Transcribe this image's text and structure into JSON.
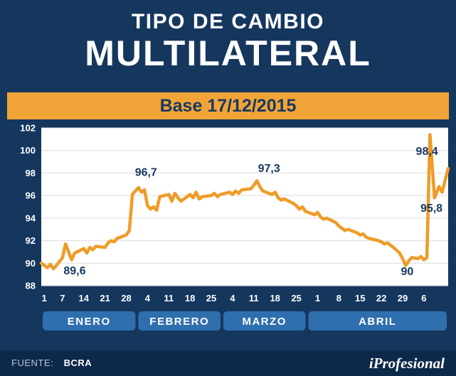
{
  "header": {
    "title_line1": "TIPO DE CAMBIO",
    "title_line2": "MULTILATERAL",
    "base_label": "Base 17/12/2015"
  },
  "footer": {
    "source_label": "FUENTE:",
    "source_value": "BCRA",
    "brand": "iProfesional"
  },
  "colors": {
    "navy": "#15375e",
    "footer_navy": "#0d2949",
    "banner_orange": "#f1a437",
    "line_orange": "#ee9c28",
    "band_blue": "#2f6fad",
    "plot_bg": "#ffffff",
    "grid": "#dcdcdc",
    "label_navy": "#173a61",
    "tick_white": "#ffffff"
  },
  "chart_data": {
    "type": "line",
    "title": "TIPO DE CAMBIO MULTILATERAL",
    "subtitle": "Base 17/12/2015",
    "source": "BCRA",
    "ylim": [
      88,
      102
    ],
    "y_ticks": [
      102,
      100,
      98,
      96,
      94,
      92,
      90,
      88
    ],
    "x_domain_days": [
      -1,
      133
    ],
    "x_ticks": [
      {
        "label": "1",
        "day": 0
      },
      {
        "label": "7",
        "day": 6
      },
      {
        "label": "14",
        "day": 13
      },
      {
        "label": "21",
        "day": 20
      },
      {
        "label": "28",
        "day": 27
      },
      {
        "label": "4",
        "day": 34
      },
      {
        "label": "11",
        "day": 41
      },
      {
        "label": "18",
        "day": 48
      },
      {
        "label": "25",
        "day": 55
      },
      {
        "label": "4",
        "day": 62
      },
      {
        "label": "11",
        "day": 69
      },
      {
        "label": "18",
        "day": 76
      },
      {
        "label": "25",
        "day": 83
      },
      {
        "label": "1",
        "day": 90
      },
      {
        "label": "8",
        "day": 97
      },
      {
        "label": "15",
        "day": 104
      },
      {
        "label": "22",
        "day": 111
      },
      {
        "label": "29",
        "day": 118
      },
      {
        "label": "6",
        "day": 125
      }
    ],
    "months": [
      {
        "label": "ENERO",
        "start_day": -1,
        "end_day": 30.5
      },
      {
        "label": "FEBRERO",
        "start_day": 30.5,
        "end_day": 58.5
      },
      {
        "label": "MARZO",
        "start_day": 58.5,
        "end_day": 86.5
      },
      {
        "label": "ABRIL",
        "start_day": 86.5,
        "end_day": 133
      }
    ],
    "series": [
      {
        "name": "tipo_de_cambio_multilateral",
        "points": [
          [
            -1,
            90.0
          ],
          [
            0,
            89.8
          ],
          [
            1,
            89.6
          ],
          [
            2,
            89.9
          ],
          [
            3,
            89.5
          ],
          [
            4,
            89.8
          ],
          [
            6,
            90.5
          ],
          [
            7,
            91.7
          ],
          [
            8,
            91.0
          ],
          [
            9,
            90.3
          ],
          [
            10,
            90.9
          ],
          [
            13,
            91.3
          ],
          [
            14,
            90.9
          ],
          [
            15,
            91.4
          ],
          [
            16,
            91.2
          ],
          [
            17,
            91.5
          ],
          [
            20,
            91.4
          ],
          [
            21,
            91.8
          ],
          [
            22,
            92.0
          ],
          [
            23,
            91.9
          ],
          [
            24,
            92.2
          ],
          [
            27,
            92.5
          ],
          [
            28,
            92.9
          ],
          [
            29,
            96.1
          ],
          [
            30,
            96.4
          ],
          [
            31,
            96.7
          ],
          [
            32,
            96.3
          ],
          [
            33,
            96.5
          ],
          [
            34,
            95.1
          ],
          [
            35,
            94.8
          ],
          [
            36,
            95.0
          ],
          [
            37,
            94.7
          ],
          [
            38,
            95.9
          ],
          [
            41,
            96.1
          ],
          [
            42,
            95.5
          ],
          [
            43,
            96.2
          ],
          [
            44,
            95.8
          ],
          [
            45,
            95.5
          ],
          [
            48,
            96.1
          ],
          [
            49,
            95.8
          ],
          [
            50,
            96.3
          ],
          [
            51,
            95.7
          ],
          [
            52,
            95.9
          ],
          [
            55,
            96.0
          ],
          [
            56,
            96.2
          ],
          [
            57,
            95.9
          ],
          [
            58,
            96.1
          ],
          [
            61,
            96.3
          ],
          [
            62,
            96.1
          ],
          [
            63,
            96.4
          ],
          [
            64,
            96.2
          ],
          [
            65,
            96.5
          ],
          [
            68,
            96.6
          ],
          [
            69,
            96.9
          ],
          [
            70,
            97.3
          ],
          [
            71,
            96.8
          ],
          [
            72,
            96.4
          ],
          [
            75,
            96.1
          ],
          [
            76,
            96.3
          ],
          [
            77,
            95.8
          ],
          [
            78,
            95.6
          ],
          [
            79,
            95.7
          ],
          [
            82,
            95.3
          ],
          [
            83,
            95.1
          ],
          [
            84,
            94.8
          ],
          [
            85,
            95.0
          ],
          [
            86,
            94.6
          ],
          [
            89,
            94.3
          ],
          [
            90,
            94.5
          ],
          [
            91,
            94.1
          ],
          [
            92,
            93.9
          ],
          [
            93,
            94.0
          ],
          [
            96,
            93.6
          ],
          [
            97,
            93.3
          ],
          [
            98,
            93.1
          ],
          [
            99,
            92.9
          ],
          [
            100,
            93.0
          ],
          [
            103,
            92.7
          ],
          [
            104,
            92.5
          ],
          [
            105,
            92.6
          ],
          [
            106,
            92.3
          ],
          [
            107,
            92.2
          ],
          [
            110,
            92.0
          ],
          [
            111,
            91.9
          ],
          [
            112,
            91.7
          ],
          [
            113,
            91.8
          ],
          [
            114,
            91.6
          ],
          [
            115,
            91.4
          ],
          [
            117,
            90.9
          ],
          [
            118,
            90.4
          ],
          [
            119,
            89.8
          ],
          [
            120,
            90.2
          ],
          [
            121,
            90.5
          ],
          [
            123,
            90.4
          ],
          [
            124,
            90.6
          ],
          [
            125,
            90.3
          ],
          [
            126,
            90.5
          ],
          [
            127,
            101.4
          ],
          [
            128.5,
            95.8
          ],
          [
            130,
            96.8
          ],
          [
            131,
            96.3
          ],
          [
            133,
            98.4
          ]
        ]
      }
    ],
    "annotations": [
      {
        "text": "89,6",
        "day": 10,
        "value": 89.0
      },
      {
        "text": "96,7",
        "day": 33.5,
        "value": 97.75
      },
      {
        "text": "97,3",
        "day": 74,
        "value": 98.1
      },
      {
        "text": "90",
        "day": 119.5,
        "value": 88.95
      },
      {
        "text": "95,8",
        "day": 127.5,
        "value": 94.55
      },
      {
        "text": "98,4",
        "day": 126.0,
        "value": 99.6
      }
    ]
  }
}
